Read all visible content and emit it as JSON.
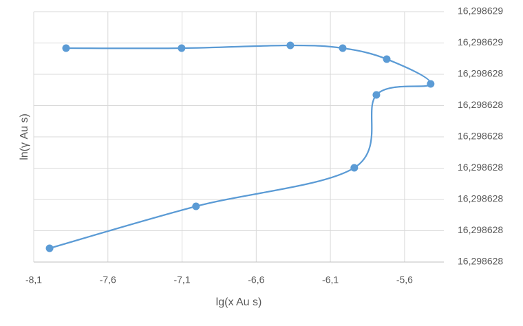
{
  "chart_data": {
    "type": "scatter",
    "x_label": "lg(x Au s)",
    "y_label": "ln(γ Au s)",
    "series": [
      {
        "color": "#5b9bd5",
        "x": [
          -7.882,
          -7.103,
          -6.37,
          -6.017,
          -5.72,
          -5.424,
          -5.79,
          -5.939,
          -7.006,
          -7.993
        ],
        "values": [
          16.2986285335,
          16.2986285335,
          16.2986285423,
          16.2986285335,
          16.2986284984,
          16.2986284192,
          16.2986283841,
          16.2986281511,
          16.298628028,
          16.298627894
        ]
      }
    ],
    "smooth": true,
    "grid": true,
    "xlim": [
      -8.1,
      -5.335
    ],
    "xticks": [
      {
        "value": -8.1,
        "label": "-8,1"
      },
      {
        "value": -7.6,
        "label": "-7,6"
      },
      {
        "value": -7.1,
        "label": "-7,1"
      },
      {
        "value": -6.6,
        "label": "-6,6"
      },
      {
        "value": -6.1,
        "label": "-6,1"
      },
      {
        "value": -5.6,
        "label": "-5,6"
      }
    ],
    "ylim": [
      16.29862785,
      16.29862865
    ],
    "yticks": [
      {
        "value": 16.29862785,
        "label": "16,298628"
      },
      {
        "value": 16.29862795,
        "label": "16,298628"
      },
      {
        "value": 16.29862805,
        "label": "16,298628"
      },
      {
        "value": 16.29862815,
        "label": "16,298628"
      },
      {
        "value": 16.29862825,
        "label": "16,298628"
      },
      {
        "value": 16.29862835,
        "label": "16,298628"
      },
      {
        "value": 16.29862845,
        "label": "16,298628"
      },
      {
        "value": 16.29862855,
        "label": "16,298629"
      },
      {
        "value": 16.29862865,
        "label": "16,298629"
      }
    ],
    "y_axis_side": "right"
  }
}
